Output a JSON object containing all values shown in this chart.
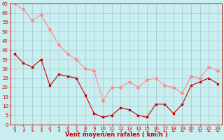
{
  "hours": [
    0,
    1,
    2,
    3,
    4,
    5,
    6,
    7,
    8,
    9,
    10,
    11,
    12,
    13,
    14,
    15,
    16,
    17,
    18,
    19,
    20,
    21,
    22,
    23
  ],
  "wind_avg": [
    38,
    33,
    31,
    35,
    21,
    27,
    26,
    25,
    16,
    6,
    4,
    5,
    9,
    8,
    5,
    4,
    11,
    11,
    6,
    11,
    21,
    23,
    25,
    22
  ],
  "wind_gust": [
    65,
    62,
    56,
    59,
    51,
    43,
    38,
    35,
    30,
    29,
    13,
    20,
    20,
    23,
    20,
    24,
    25,
    21,
    20,
    17,
    26,
    25,
    31,
    29
  ],
  "wind_dir_deg": [
    225,
    225,
    225,
    225,
    225,
    225,
    225,
    225,
    270,
    315,
    0,
    315,
    315,
    315,
    315,
    315,
    270,
    270,
    270,
    270,
    270,
    270,
    270,
    270
  ],
  "avg_color": "#cc0000",
  "gust_color": "#ff8888",
  "bg_color": "#c8eef0",
  "grid_color": "#99bbcc",
  "xlabel": "Vent moyen/en rafales ( km/h )",
  "xlabel_color": "#cc0000",
  "ylim": [
    0,
    65
  ],
  "yticks": [
    0,
    5,
    10,
    15,
    20,
    25,
    30,
    35,
    40,
    45,
    50,
    55,
    60,
    65
  ],
  "xticks": [
    0,
    1,
    2,
    3,
    4,
    5,
    6,
    7,
    8,
    9,
    10,
    11,
    12,
    13,
    14,
    15,
    16,
    17,
    18,
    19,
    20,
    21,
    22,
    23
  ],
  "tick_fontsize": 5.0,
  "xlabel_fontsize": 6.0,
  "line_width": 0.8,
  "marker_size": 2.0
}
